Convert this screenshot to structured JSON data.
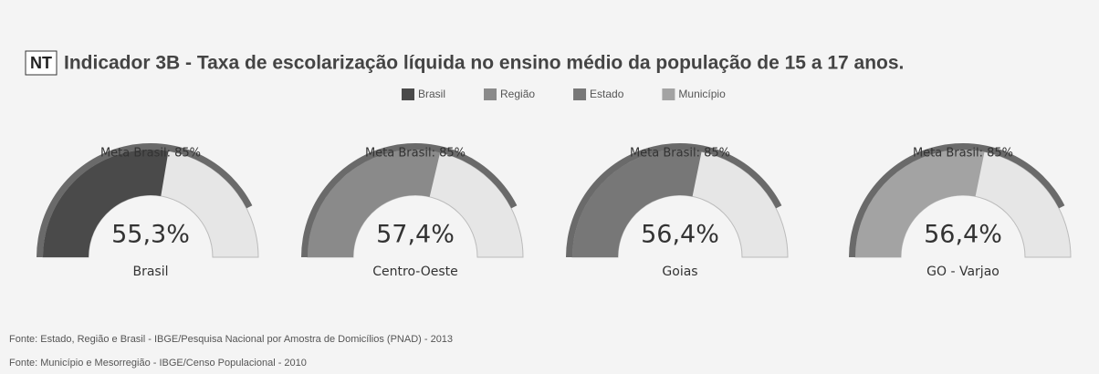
{
  "badge": "NT",
  "title": "Indicador 3B - Taxa de escolarização líquida no ensino médio da população de 15 a 17 anos.",
  "chart_data": [
    {
      "type": "gauge",
      "label": "Brasil",
      "series": [
        {
          "name": "Brasil",
          "color": "#4a4a4a",
          "values": [
            55.3
          ],
          "value_labels": [
            "55,3%"
          ]
        }
      ],
      "target": 85,
      "target_label": "Meta Brasil: 85%",
      "target_color": "#6a6a6a",
      "ylim": [
        0,
        100
      ]
    },
    {
      "type": "gauge",
      "label": "Centro-Oeste",
      "series": [
        {
          "name": "Região",
          "color": "#8a8a8a",
          "values": [
            57.4
          ],
          "value_labels": [
            "57,4%"
          ]
        }
      ],
      "target": 85,
      "target_label": "Meta Brasil: 85%",
      "target_color": "#6a6a6a",
      "ylim": [
        0,
        100
      ]
    },
    {
      "type": "gauge",
      "label": "Goias",
      "series": [
        {
          "name": "Estado",
          "color": "#777777",
          "values": [
            56.4
          ],
          "value_labels": [
            "56,4%"
          ]
        }
      ],
      "target": 85,
      "target_label": "Meta Brasil: 85%",
      "target_color": "#6a6a6a",
      "ylim": [
        0,
        100
      ]
    },
    {
      "type": "gauge",
      "label": "GO - Varjao",
      "series": [
        {
          "name": "Município",
          "color": "#a3a3a3",
          "values": [
            56.4
          ],
          "value_labels": [
            "56,4%"
          ]
        }
      ],
      "target": 85,
      "target_label": "Meta Brasil: 85%",
      "target_color": "#6a6a6a",
      "ylim": [
        0,
        100
      ]
    }
  ],
  "footnotes": [
    "Fonte: Estado, Região e Brasil - IBGE/Pesquisa Nacional por Amostra de Domicílios (PNAD) - 2013",
    "Fonte: Município e Mesorregião - IBGE/Censo Populacional - 2010"
  ]
}
